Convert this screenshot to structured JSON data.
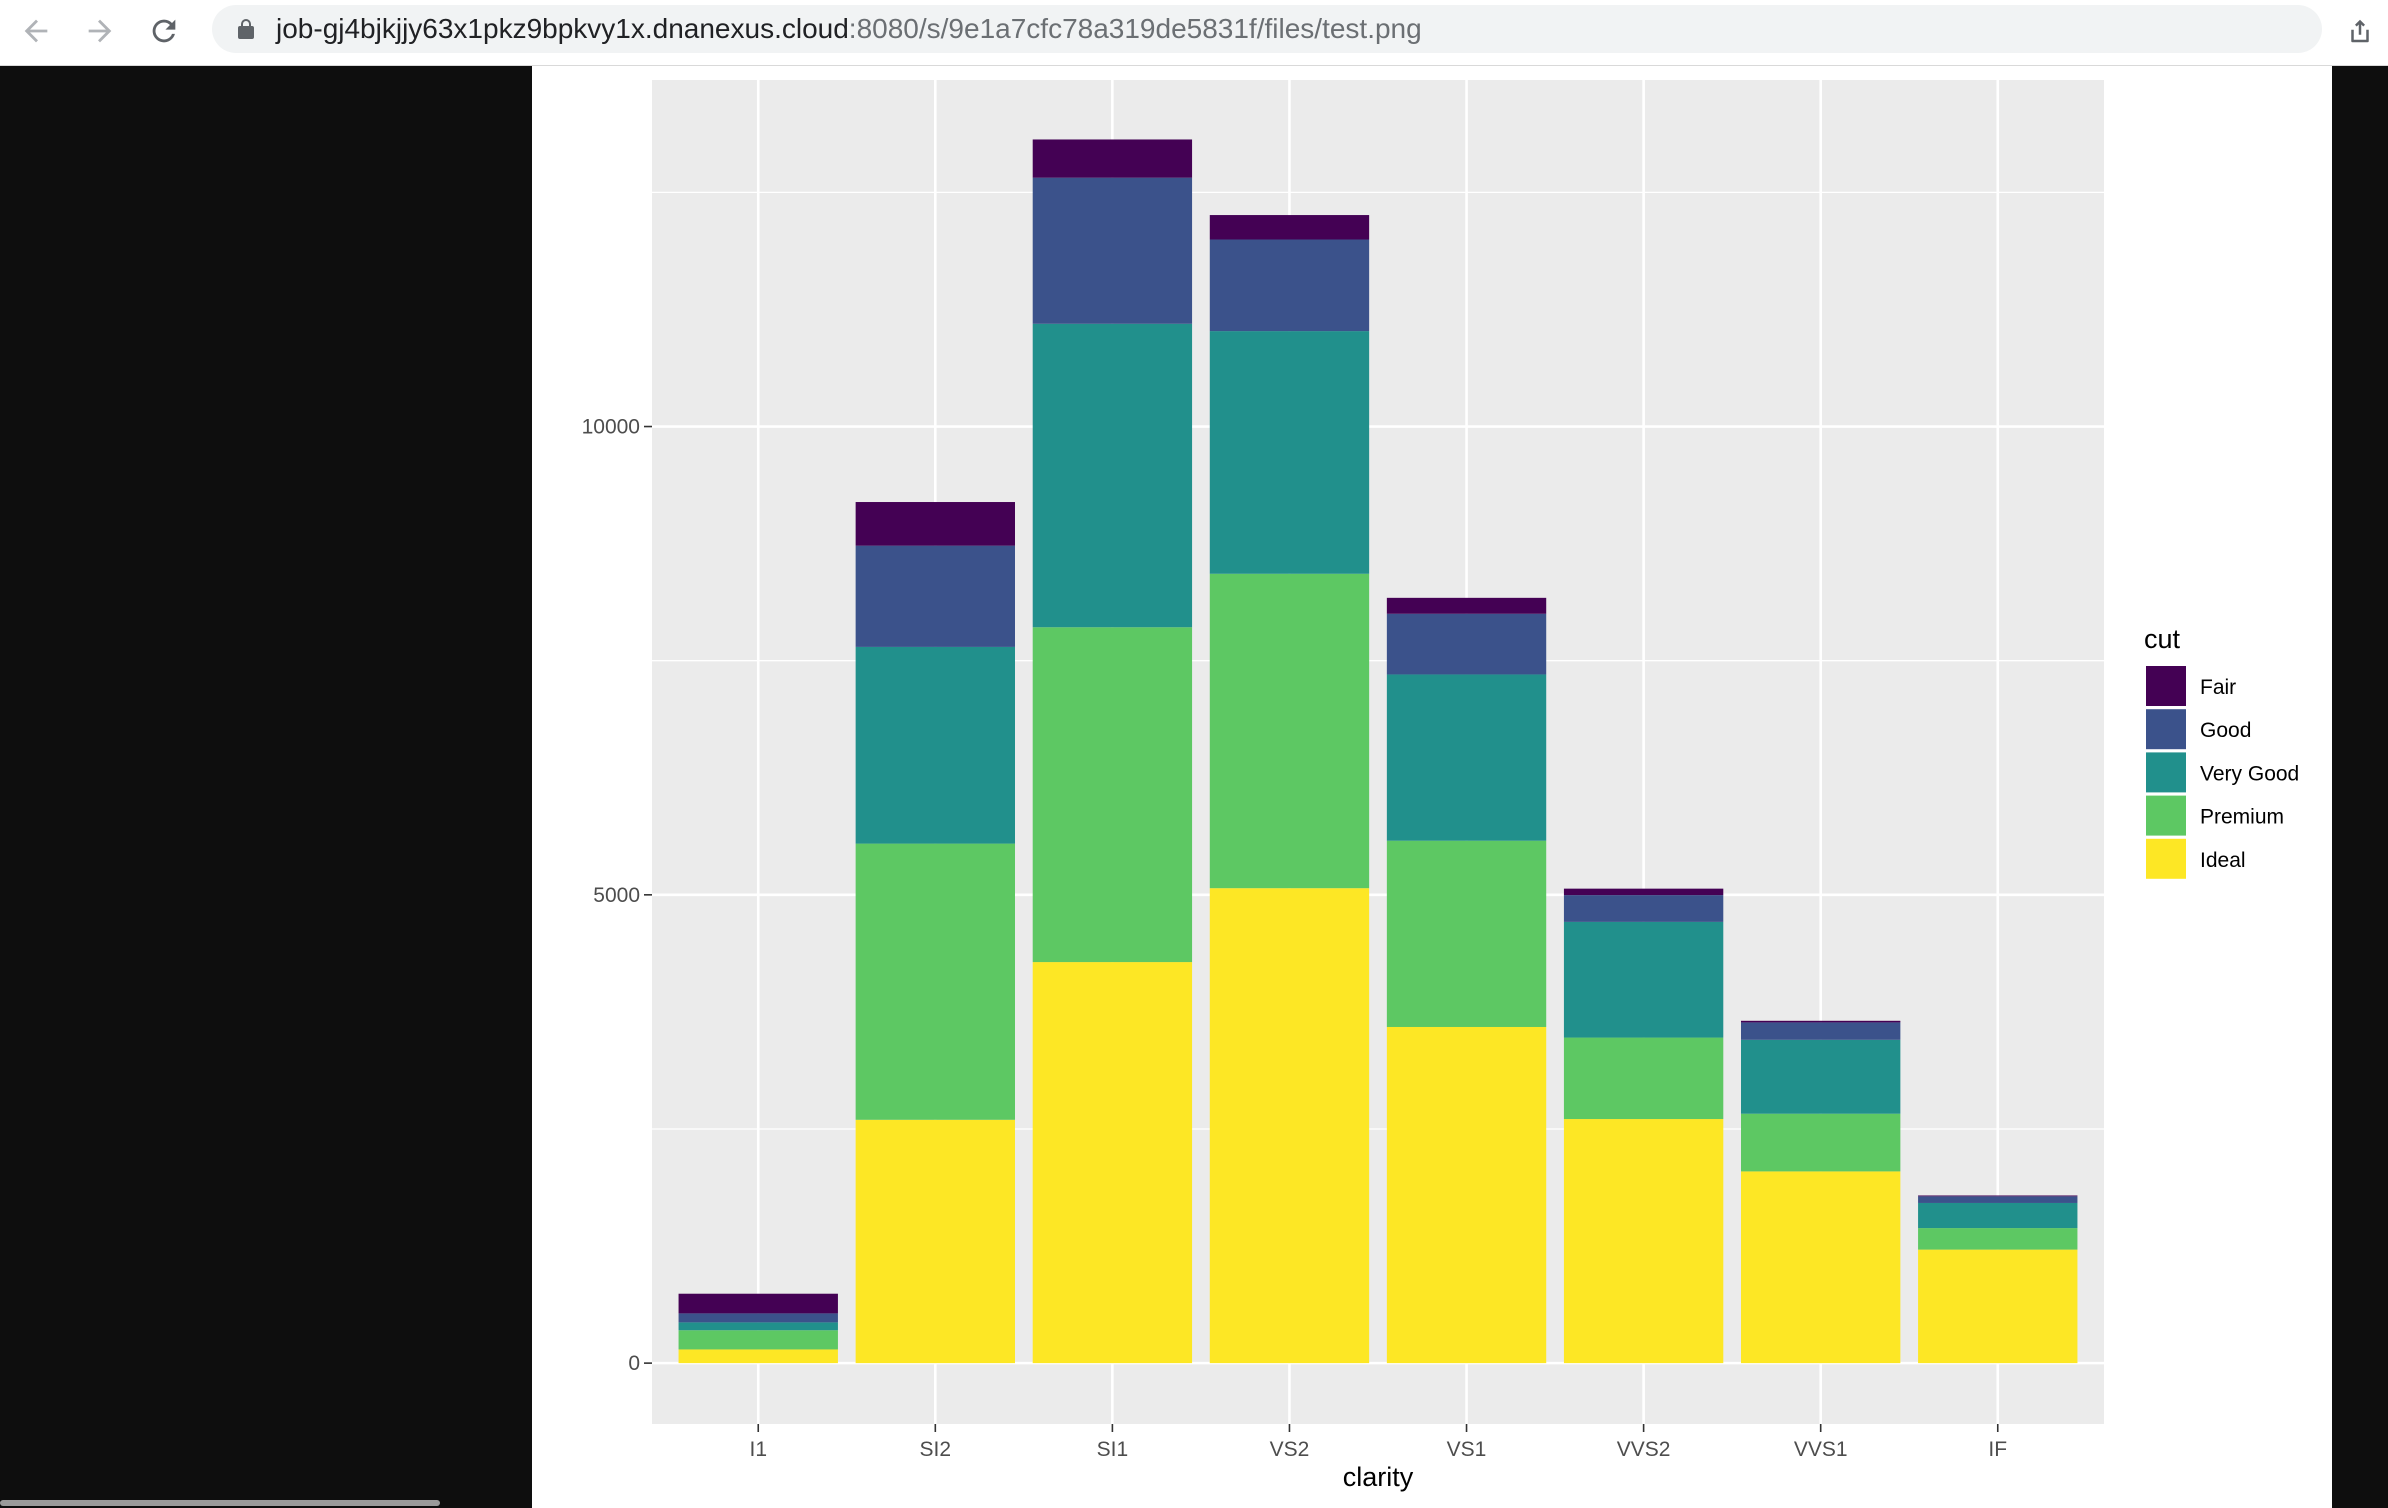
{
  "browser": {
    "url_host": "job-gj4bjkjjy63x1pkz9bpkvy1x.dnanexus.cloud",
    "url_rest": ":8080/s/9e1a7cfc78a319de5831f/files/test.png",
    "icons": [
      "back-arrow-icon",
      "forward-arrow-icon",
      "reload-icon",
      "lock-icon",
      "share-icon"
    ]
  },
  "chart_data": {
    "type": "bar",
    "stacked": true,
    "categories": [
      "I1",
      "SI2",
      "SI1",
      "VS2",
      "VS1",
      "VVS2",
      "VVS1",
      "IF"
    ],
    "series": [
      {
        "name": "Fair",
        "color": "#440154",
        "values": [
          210,
          466,
          408,
          261,
          170,
          69,
          17,
          9
        ]
      },
      {
        "name": "Good",
        "color": "#3B528B",
        "values": [
          96,
          1081,
          1560,
          978,
          648,
          286,
          186,
          71
        ]
      },
      {
        "name": "Very Good",
        "color": "#21908C",
        "values": [
          84,
          2100,
          3240,
          2591,
          1775,
          1235,
          789,
          268
        ]
      },
      {
        "name": "Premium",
        "color": "#5DC863",
        "values": [
          205,
          2949,
          3575,
          3357,
          1989,
          870,
          616,
          230
        ]
      },
      {
        "name": "Ideal",
        "color": "#FDE725",
        "values": [
          146,
          2598,
          4282,
          5071,
          3589,
          2606,
          2047,
          1212
        ]
      }
    ],
    "legend_order": [
      "Fair",
      "Good",
      "Very Good",
      "Premium",
      "Ideal"
    ],
    "yticks": [
      "0",
      "5000",
      "10000"
    ],
    "ylim": [
      -650,
      13700
    ],
    "xlabel": "clarity",
    "ylabel": "",
    "legend_title": "cut",
    "legend_position": "right",
    "grid": true,
    "panel_background": "#EBEBEB"
  }
}
